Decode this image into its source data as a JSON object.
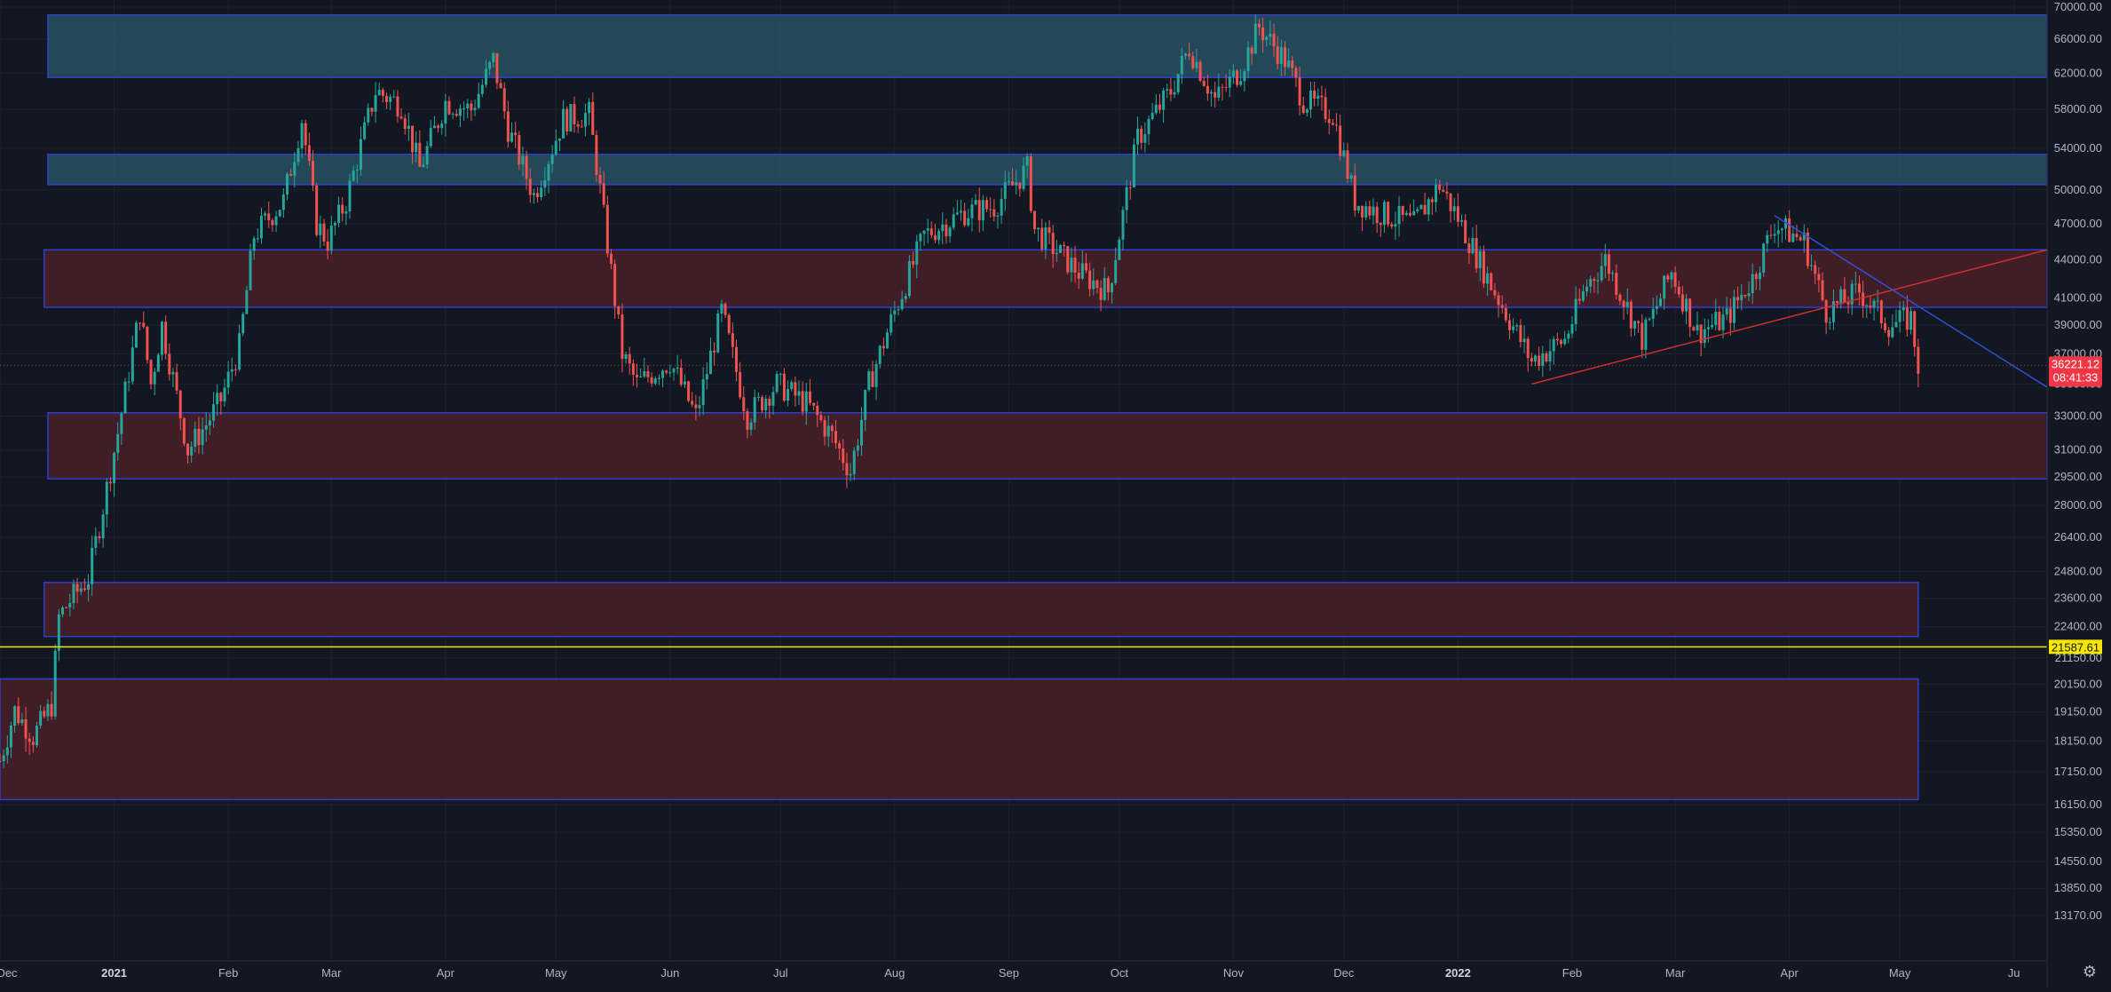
{
  "chart_data": {
    "type": "candlestick",
    "title": "",
    "xlabel": "",
    "ylabel": "",
    "y_scale": "log",
    "ylim": [
      12600,
      70000
    ],
    "xlim": [
      "2020-12-01",
      "2022-06-10"
    ],
    "grid": true,
    "colors": {
      "background": "#131722",
      "up": "#26a69a",
      "down": "#ef5350",
      "grid": "#1e2230",
      "axis_text": "#b2b5be",
      "zone_blue_fill": "#2a5a6a",
      "zone_red_fill": "#4a1f28",
      "zone_border": "#2f3fcc",
      "support_line": "#d03030",
      "resistance_line": "#2f4fd0",
      "marker_line": "#f5e600",
      "price_badge": "#f23645"
    },
    "y_ticks": [
      "70000.00",
      "66000.00",
      "62000.00",
      "58000.00",
      "54000.00",
      "50000.00",
      "47000.00",
      "44000.00",
      "41000.00",
      "39000.00",
      "37000.00",
      "35000.00",
      "33000.00",
      "31000.00",
      "29500.00",
      "28000.00",
      "26400.00",
      "24800.00",
      "23600.00",
      "22400.00",
      "21150.00",
      "20150.00",
      "19150.00",
      "18150.00",
      "17150.00",
      "16150.00",
      "15350.00",
      "14550.00",
      "13850.00",
      "13170.00"
    ],
    "x_ticks": [
      {
        "label": "Dec",
        "date": "2020-12-01"
      },
      {
        "label": "2021",
        "date": "2021-01-01"
      },
      {
        "label": "Feb",
        "date": "2021-02-01"
      },
      {
        "label": "Mar",
        "date": "2021-03-01"
      },
      {
        "label": "Apr",
        "date": "2021-04-01"
      },
      {
        "label": "May",
        "date": "2021-05-01"
      },
      {
        "label": "Jun",
        "date": "2021-06-01"
      },
      {
        "label": "Jul",
        "date": "2021-07-01"
      },
      {
        "label": "Aug",
        "date": "2021-08-01"
      },
      {
        "label": "Sep",
        "date": "2021-09-01"
      },
      {
        "label": "Oct",
        "date": "2021-10-01"
      },
      {
        "label": "Nov",
        "date": "2021-11-01"
      },
      {
        "label": "Dec",
        "date": "2021-12-01"
      },
      {
        "label": "2022",
        "date": "2022-01-01"
      },
      {
        "label": "Feb",
        "date": "2022-02-01"
      },
      {
        "label": "Mar",
        "date": "2022-03-01"
      },
      {
        "label": "Apr",
        "date": "2022-04-01"
      },
      {
        "label": "May",
        "date": "2022-05-01"
      },
      {
        "label": "Ju",
        "date": "2022-06-01"
      }
    ],
    "zones": [
      {
        "name": "zone-top",
        "kind": "blue",
        "x_start": "2020-12-14",
        "x_end": "2022-06-10",
        "y_low": 61500,
        "y_high": 69000
      },
      {
        "name": "zone-upper",
        "kind": "blue",
        "x_start": "2020-12-14",
        "x_end": "2022-06-10",
        "y_low": 50500,
        "y_high": 53400
      },
      {
        "name": "zone-44k",
        "kind": "red",
        "x_start": "2020-12-13",
        "x_end": "2022-06-10",
        "y_low": 40300,
        "y_high": 44800
      },
      {
        "name": "zone-31k",
        "kind": "red",
        "x_start": "2020-12-14",
        "x_end": "2022-06-10",
        "y_low": 29400,
        "y_high": 33200
      },
      {
        "name": "zone-23k",
        "kind": "red",
        "x_start": "2020-12-13",
        "x_end": "2022-05-06",
        "y_low": 22000,
        "y_high": 24300
      },
      {
        "name": "zone-18k",
        "kind": "red",
        "x_start": "2020-12-01",
        "x_end": "2022-05-06",
        "y_low": 16300,
        "y_high": 20350
      }
    ],
    "trendlines": [
      {
        "name": "support-line",
        "kind": "support",
        "points": [
          [
            "2022-01-21",
            35000
          ],
          [
            "2022-06-10",
            44800
          ]
        ]
      },
      {
        "name": "resistance-line",
        "kind": "resistance",
        "points": [
          [
            "2022-03-28",
            47700
          ],
          [
            "2022-06-10",
            34800
          ]
        ]
      }
    ],
    "horizontal_lines": [
      {
        "name": "marker-21587",
        "value": 21587.61,
        "label": "21587.61"
      }
    ],
    "current_price": {
      "value": 36221.12,
      "label": "36221.12",
      "countdown": "08:41:33"
    },
    "series": [
      {
        "name": "BTC",
        "points": [
          [
            "2020-12-01",
            17500
          ],
          [
            "2020-12-05",
            19200
          ],
          [
            "2020-12-10",
            18300
          ],
          [
            "2020-12-15",
            19400
          ],
          [
            "2020-12-17",
            22800
          ],
          [
            "2020-12-20",
            23500
          ],
          [
            "2020-12-25",
            24500
          ],
          [
            "2020-12-28",
            27000
          ],
          [
            "2021-01-02",
            32000
          ],
          [
            "2021-01-08",
            40000
          ],
          [
            "2021-01-11",
            35000
          ],
          [
            "2021-01-14",
            39000
          ],
          [
            "2021-01-21",
            31000
          ],
          [
            "2021-01-26",
            32500
          ],
          [
            "2021-01-30",
            34000
          ],
          [
            "2021-02-04",
            37500
          ],
          [
            "2021-02-08",
            46000
          ],
          [
            "2021-02-12",
            47500
          ],
          [
            "2021-02-16",
            49000
          ],
          [
            "2021-02-21",
            57000
          ],
          [
            "2021-02-25",
            47000
          ],
          [
            "2021-02-28",
            45500
          ],
          [
            "2021-03-05",
            49000
          ],
          [
            "2021-03-13",
            60000
          ],
          [
            "2021-03-20",
            58500
          ],
          [
            "2021-03-25",
            52000
          ],
          [
            "2021-04-01",
            58800
          ],
          [
            "2021-04-08",
            58000
          ],
          [
            "2021-04-14",
            63500
          ],
          [
            "2021-04-18",
            56000
          ],
          [
            "2021-04-25",
            49500
          ],
          [
            "2021-05-03",
            57000
          ],
          [
            "2021-05-10",
            57500
          ],
          [
            "2021-05-13",
            50000
          ],
          [
            "2021-05-19",
            37000
          ],
          [
            "2021-05-23",
            35000
          ],
          [
            "2021-06-01",
            36500
          ],
          [
            "2021-06-08",
            33000
          ],
          [
            "2021-06-15",
            40000
          ],
          [
            "2021-06-22",
            33000
          ],
          [
            "2021-06-30",
            35000
          ],
          [
            "2021-07-08",
            33800
          ],
          [
            "2021-07-15",
            31800
          ],
          [
            "2021-07-20",
            29800
          ],
          [
            "2021-07-25",
            35000
          ],
          [
            "2021-08-01",
            40000
          ],
          [
            "2021-08-09",
            46000
          ],
          [
            "2021-08-20",
            48000
          ],
          [
            "2021-08-28",
            48500
          ],
          [
            "2021-09-06",
            52000
          ],
          [
            "2021-09-08",
            46500
          ],
          [
            "2021-09-20",
            43000
          ],
          [
            "2021-09-28",
            41500
          ],
          [
            "2021-10-06",
            55000
          ],
          [
            "2021-10-15",
            60000
          ],
          [
            "2021-10-20",
            65000
          ],
          [
            "2021-10-27",
            59000
          ],
          [
            "2021-11-03",
            62500
          ],
          [
            "2021-11-08",
            67500
          ],
          [
            "2021-11-15",
            63500
          ],
          [
            "2021-11-20",
            59000
          ],
          [
            "2021-11-28",
            57500
          ],
          [
            "2021-12-04",
            49000
          ],
          [
            "2021-12-10",
            48000
          ],
          [
            "2021-12-20",
            47000
          ],
          [
            "2021-12-27",
            50500
          ],
          [
            "2022-01-01",
            47500
          ],
          [
            "2022-01-10",
            42000
          ],
          [
            "2022-01-21",
            36500
          ],
          [
            "2022-01-30",
            38000
          ],
          [
            "2022-02-05",
            42000
          ],
          [
            "2022-02-10",
            44000
          ],
          [
            "2022-02-20",
            38000
          ],
          [
            "2022-02-28",
            43000
          ],
          [
            "2022-03-07",
            38500
          ],
          [
            "2022-03-15",
            39500
          ],
          [
            "2022-03-22",
            42500
          ],
          [
            "2022-03-28",
            47000
          ],
          [
            "2022-04-05",
            45500
          ],
          [
            "2022-04-11",
            40000
          ],
          [
            "2022-04-20",
            41500
          ],
          [
            "2022-04-28",
            39000
          ],
          [
            "2022-05-04",
            39500
          ],
          [
            "2022-05-06",
            36221
          ]
        ]
      }
    ]
  },
  "ui": {
    "settings_icon": "gear-icon"
  }
}
